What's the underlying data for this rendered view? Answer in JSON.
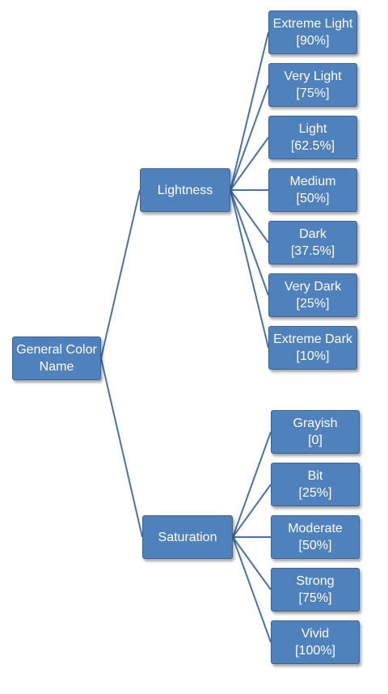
{
  "diagram": {
    "root": {
      "label_line1": "General Color",
      "label_line2": "Name"
    },
    "branches": [
      {
        "label": "Lightness",
        "children": [
          {
            "name": "Extreme Light",
            "value": "[90%]"
          },
          {
            "name": "Very Light",
            "value": "[75%]"
          },
          {
            "name": "Light",
            "value": "[62.5%]"
          },
          {
            "name": "Medium",
            "value": "[50%]"
          },
          {
            "name": "Dark",
            "value": "[37.5%]"
          },
          {
            "name": "Very Dark",
            "value": "[25%]"
          },
          {
            "name": "Extreme Dark",
            "value": "[10%]"
          }
        ]
      },
      {
        "label": "Saturation",
        "children": [
          {
            "name": "Grayish",
            "value": "[0]"
          },
          {
            "name": "Bit",
            "value": "[25%]"
          },
          {
            "name": "Moderate",
            "value": "[50%]"
          },
          {
            "name": "Strong",
            "value": "[75%]"
          },
          {
            "name": "Vivid",
            "value": "[100%]"
          }
        ]
      }
    ],
    "colors": {
      "node_fill": "#4f81bd",
      "node_border": "#3a6494",
      "connector": "#4a72a8",
      "text": "#ffffff"
    }
  }
}
